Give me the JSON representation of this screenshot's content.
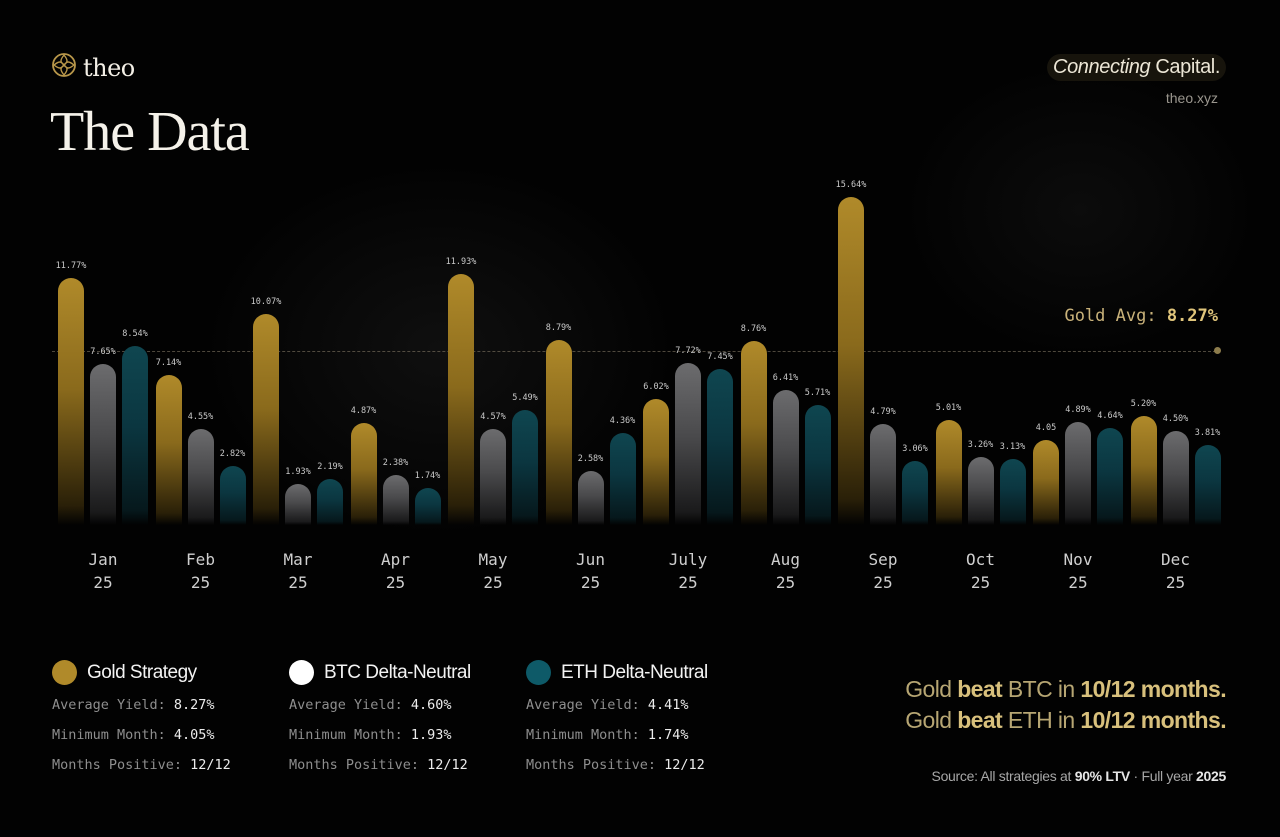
{
  "brand": {
    "logo_text": "theo",
    "tagline_italic": "Connecting",
    "tagline_rest": " Capital.",
    "site": "theo.xyz"
  },
  "page": {
    "title": "The Data"
  },
  "colors": {
    "gold": "#b08a2a",
    "btc": "#6c6c6e",
    "eth": "#0f4650",
    "background": "#020202",
    "avg_line": "#8d7c4c"
  },
  "avg": {
    "label": "Gold Avg: ",
    "value": "8.27%"
  },
  "chart_data": {
    "type": "bar",
    "title": "The Data",
    "categories": [
      "Jan 25",
      "Feb 25",
      "Mar 25",
      "Apr 25",
      "May 25",
      "Jun 25",
      "July 25",
      "Aug 25",
      "Sep 25",
      "Oct 25",
      "Nov 25",
      "Dec 25"
    ],
    "series": [
      {
        "name": "Gold Strategy",
        "color": "#b08a2a",
        "values": [
          11.77,
          7.14,
          10.07,
          4.87,
          11.93,
          8.79,
          6.02,
          8.76,
          15.64,
          5.01,
          4.05,
          5.2
        ]
      },
      {
        "name": "BTC Delta-Neutral",
        "color": "#6c6c6e",
        "values": [
          7.65,
          4.55,
          1.93,
          2.38,
          4.57,
          2.58,
          7.72,
          6.41,
          4.79,
          3.26,
          4.89,
          4.5
        ]
      },
      {
        "name": "ETH Delta-Neutral",
        "color": "#0f4650",
        "values": [
          8.54,
          2.82,
          2.19,
          1.74,
          5.49,
          4.36,
          7.45,
          5.71,
          3.06,
          3.13,
          4.64,
          3.81
        ]
      }
    ],
    "data_labels": [
      [
        "11.77%",
        "7.65%",
        "8.54%"
      ],
      [
        "7.14%",
        "4.55%",
        "2.82%"
      ],
      [
        "10.07%",
        "1.93%",
        "2.19%"
      ],
      [
        "4.87%",
        "2.38%",
        "1.74%"
      ],
      [
        "11.93%",
        "4.57%",
        "5.49%"
      ],
      [
        "8.79%",
        "2.58%",
        "4.36%"
      ],
      [
        "6.02%",
        "7.72%",
        "7.45%"
      ],
      [
        "8.76%",
        "6.41%",
        "5.71%"
      ],
      [
        "15.64%",
        "4.79%",
        "3.06%"
      ],
      [
        "5.01%",
        "3.26%",
        "3.13%"
      ],
      [
        "4.05",
        "4.89%",
        "4.64%"
      ],
      [
        "5.20%",
        "4.50%",
        "3.81%"
      ]
    ],
    "annotations": [
      {
        "type": "hline",
        "y": 8.27,
        "label": "Gold Avg: 8.27%",
        "style": "dashed"
      }
    ],
    "xlabel": "",
    "ylabel": "",
    "ylim": [
      0,
      16
    ],
    "grid": false,
    "legend_position": "bottom"
  },
  "months": [
    {
      "m": "Jan",
      "y": "25"
    },
    {
      "m": "Feb",
      "y": "25"
    },
    {
      "m": "Mar",
      "y": "25"
    },
    {
      "m": "Apr",
      "y": "25"
    },
    {
      "m": "May",
      "y": "25"
    },
    {
      "m": "Jun",
      "y": "25"
    },
    {
      "m": "July",
      "y": "25"
    },
    {
      "m": "Aug",
      "y": "25"
    },
    {
      "m": "Sep",
      "y": "25"
    },
    {
      "m": "Oct",
      "y": "25"
    },
    {
      "m": "Nov",
      "y": "25"
    },
    {
      "m": "Dec",
      "y": "25"
    }
  ],
  "legend": [
    {
      "name": "Gold Strategy",
      "avg_label": "Average Yield: ",
      "avg": "8.27%",
      "min_label": "Minimum Month: ",
      "min": "4.05%",
      "pos_label": "Months Positive: ",
      "pos": "12/12"
    },
    {
      "name": "BTC Delta-Neutral",
      "avg_label": "Average Yield: ",
      "avg": "4.60%",
      "min_label": "Minimum Month: ",
      "min": "1.93%",
      "pos_label": "Months Positive: ",
      "pos": "12/12"
    },
    {
      "name": "ETH Delta-Neutral",
      "avg_label": "Average Yield: ",
      "avg": "4.41%",
      "min_label": "Minimum Month: ",
      "min": "1.74%",
      "pos_label": "Months Positive: ",
      "pos": "12/12"
    }
  ],
  "summary": {
    "line1": {
      "a": "Gold ",
      "b": "beat",
      "c": " BTC in ",
      "d": "10/12 months."
    },
    "line2": {
      "a": "Gold ",
      "b": "beat",
      "c": " ETH in ",
      "d": "10/12 months."
    }
  },
  "source": {
    "prefix": "Source: All strategies at ",
    "ltv": "90% LTV",
    "mid": " · Full year ",
    "year": "2025"
  }
}
